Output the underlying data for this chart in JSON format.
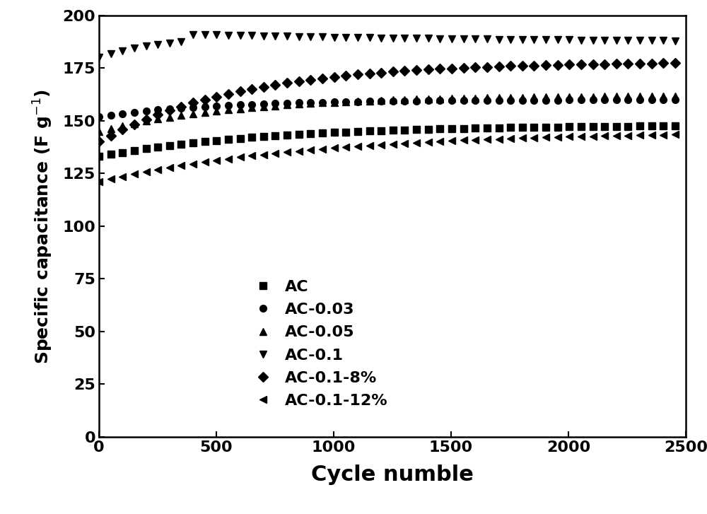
{
  "xlabel": "Cycle numble",
  "xlim": [
    0,
    2500
  ],
  "ylim": [
    0,
    200
  ],
  "xticks": [
    0,
    500,
    1000,
    1500,
    2000,
    2500
  ],
  "yticks": [
    0,
    25,
    50,
    75,
    100,
    125,
    150,
    175,
    200
  ],
  "series": [
    {
      "label": "AC",
      "marker": "s",
      "start": 133,
      "plateau": 148,
      "rise_cycles": 700
    },
    {
      "label": "AC-0.03",
      "marker": "o",
      "start": 152,
      "plateau": 160,
      "rise_cycles": 500
    },
    {
      "label": "AC-0.05",
      "marker": "^",
      "start": 145,
      "plateau": 162,
      "rise_cycles": 600
    },
    {
      "label": "AC-0.1",
      "marker": "v",
      "start": 180,
      "plateau": 190,
      "rise_cycles": 250,
      "peak": 191,
      "peak_at": 400,
      "final": 187
    },
    {
      "label": "AC-0.1-8%",
      "marker": "D",
      "start": 140,
      "plateau": 178,
      "rise_cycles": 600
    },
    {
      "label": "AC-0.1-12%",
      "marker": "<",
      "start": 121,
      "plateau": 145,
      "rise_cycles": 900
    }
  ],
  "color": "black",
  "markersize": 7,
  "xlabel_fontsize": 22,
  "ylabel_fontsize": 18,
  "tick_fontsize": 16,
  "legend_fontsize": 16,
  "figsize": [
    10.0,
    7.27
  ],
  "dpi": 100
}
